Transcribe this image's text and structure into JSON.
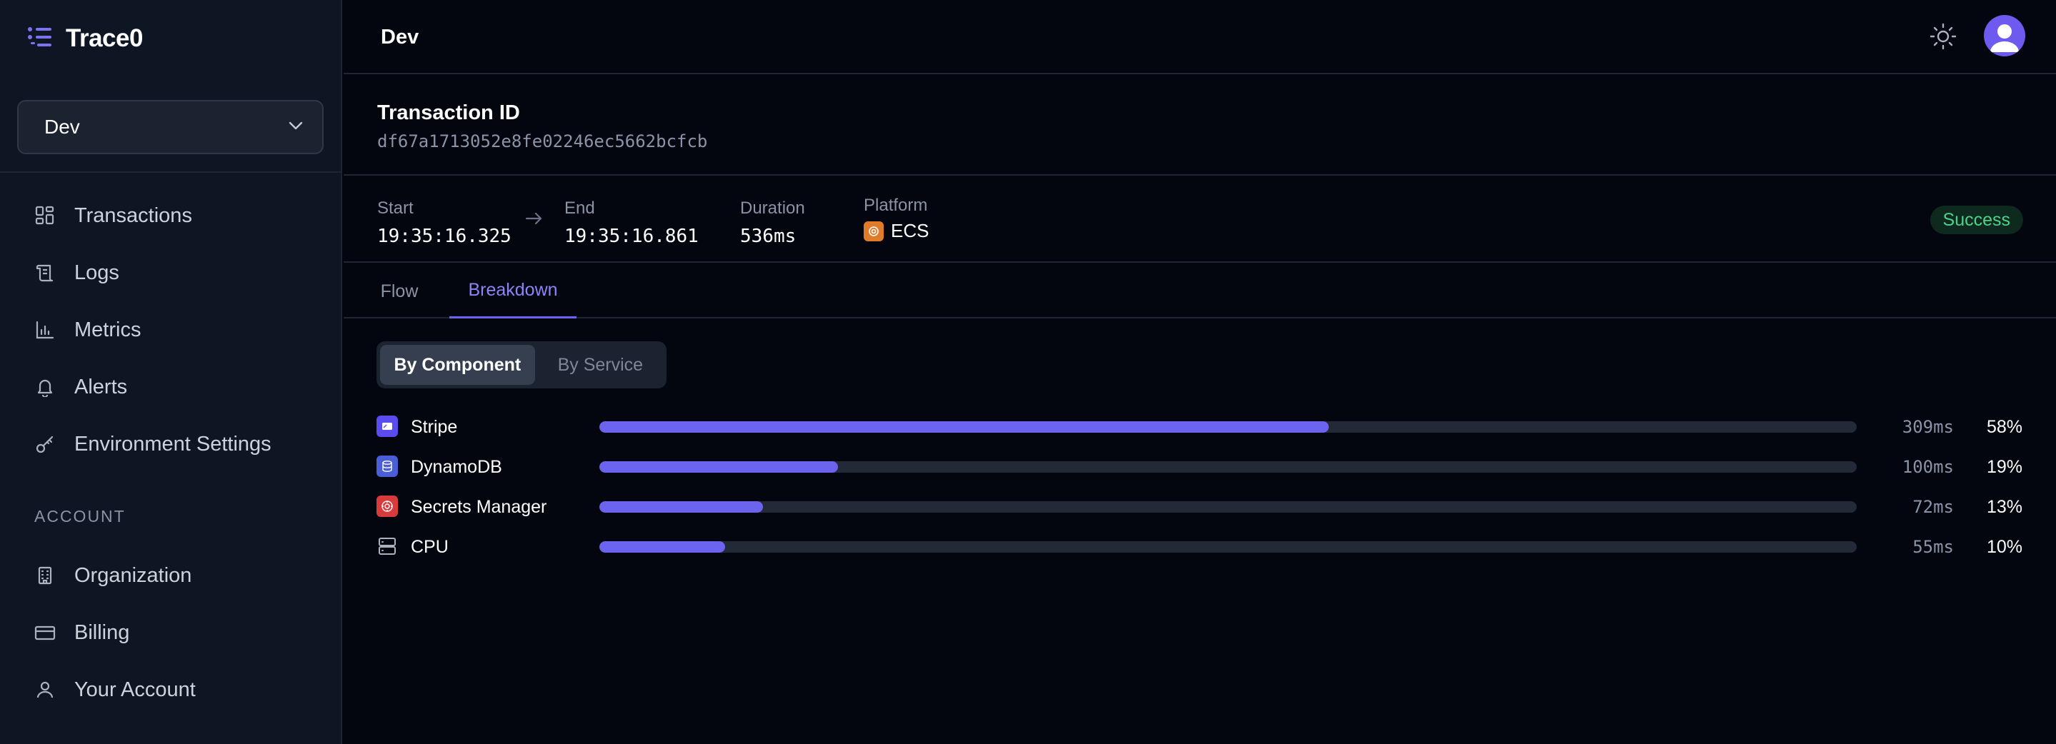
{
  "app": {
    "name": "Trace0"
  },
  "sidebar": {
    "env_selector": {
      "value": "Dev"
    },
    "nav": [
      {
        "label": "Transactions",
        "icon": "dashboard-grid-icon"
      },
      {
        "label": "Logs",
        "icon": "scroll-icon"
      },
      {
        "label": "Metrics",
        "icon": "bar-chart-icon"
      },
      {
        "label": "Alerts",
        "icon": "bell-icon"
      },
      {
        "label": "Environment Settings",
        "icon": "key-icon"
      }
    ],
    "account_section_label": "ACCOUNT",
    "account_nav": [
      {
        "label": "Organization",
        "icon": "building-icon"
      },
      {
        "label": "Billing",
        "icon": "credit-card-icon"
      },
      {
        "label": "Your Account",
        "icon": "user-icon"
      }
    ]
  },
  "topbar": {
    "title": "Dev"
  },
  "transaction": {
    "label": "Transaction ID",
    "id": "df67a1713052e8fe02246ec5662bcfcb",
    "start_label": "Start",
    "start": "19:35:16.325",
    "end_label": "End",
    "end": "19:35:16.861",
    "duration_label": "Duration",
    "duration": "536ms",
    "platform_label": "Platform",
    "platform": "ECS",
    "status": "Success"
  },
  "tabs": [
    {
      "label": "Flow",
      "active": false
    },
    {
      "label": "Breakdown",
      "active": true
    }
  ],
  "segmented": {
    "by_component": "By Component",
    "by_service": "By Service"
  },
  "breakdown": [
    {
      "name": "Stripe",
      "ms": "309ms",
      "pct": "58%",
      "fraction": 0.58,
      "icon": "stripe-icon",
      "color": "#5b4cf0"
    },
    {
      "name": "DynamoDB",
      "ms": "100ms",
      "pct": "19%",
      "fraction": 0.19,
      "icon": "dynamodb-icon",
      "color": "#4a5fd6"
    },
    {
      "name": "Secrets Manager",
      "ms": "72ms",
      "pct": "13%",
      "fraction": 0.13,
      "icon": "secrets-manager-icon",
      "color": "#d83b3b"
    },
    {
      "name": "CPU",
      "ms": "55ms",
      "pct": "10%",
      "fraction": 0.1,
      "icon": "server-icon",
      "color": "#03050f"
    }
  ],
  "colors": {
    "accent": "#6c63ef",
    "success": "#4cd38a",
    "background": "#03050f",
    "sidebar": "#0f1623"
  }
}
